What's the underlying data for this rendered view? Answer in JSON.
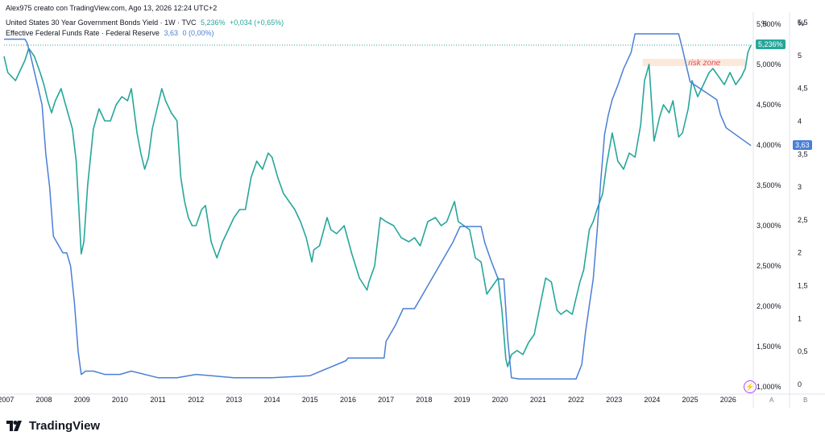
{
  "header": {
    "credit": "Alex975 creato con TradingView.com, Ago 13, 2026 12:24 UTC+2",
    "bond_title": "United States 30 Year Government Bonds Yield · 1W · TVC",
    "bond_value": "5,236%",
    "bond_change": "+0,034 (+0,65%)",
    "fed_title": "Effective Federal Funds Rate · Federal Reserve",
    "fed_value": "3,63",
    "fed_change": "0 (0,00%)"
  },
  "brand": {
    "name": "TradingView"
  },
  "colors": {
    "bond": "#26a69a",
    "fed": "#4a7fd6",
    "zone_fill": "#fbe3d0",
    "zone_text": "#e84a5f"
  },
  "chart_data": {
    "type": "line",
    "x_ticks": [
      "2007",
      "2008",
      "2009",
      "2010",
      "2011",
      "2012",
      "2013",
      "2014",
      "2015",
      "2016",
      "2017",
      "2018",
      "2019",
      "2020",
      "2021",
      "2022",
      "2023",
      "2024",
      "2025",
      "2026"
    ],
    "left_axis": {
      "title": "%",
      "ticks": [
        "5,500%",
        "5,000%",
        "4,500%",
        "4,000%",
        "3,500%",
        "3,000%",
        "2,500%",
        "2,000%",
        "1,500%",
        "1,000%"
      ],
      "range": [
        0.95,
        5.6
      ],
      "current_label": "5,236%",
      "pane_label": "A"
    },
    "right_axis": {
      "title": "%",
      "ticks": [
        "5,5",
        "5",
        "4,5",
        "4",
        "3,5",
        "3",
        "2,5",
        "2",
        "1,5",
        "1",
        "0,5",
        "0"
      ],
      "range": [
        -0.1,
        5.6
      ],
      "current_label": "3,63",
      "pane_label": "B"
    },
    "annotation": {
      "text": "risk zone",
      "x_range": [
        2023.75,
        2026.45
      ],
      "y_range": [
        4.98,
        5.07
      ]
    },
    "series": [
      {
        "name": "United States 30 Year Government Bonds Yield",
        "axis": "left",
        "x": [
          2006.95,
          2007.05,
          2007.15,
          2007.25,
          2007.35,
          2007.5,
          2007.6,
          2007.75,
          2007.9,
          2008.0,
          2008.1,
          2008.2,
          2008.3,
          2008.45,
          2008.6,
          2008.75,
          2008.85,
          2008.92,
          2008.98,
          2009.05,
          2009.15,
          2009.3,
          2009.45,
          2009.6,
          2009.75,
          2009.9,
          2010.05,
          2010.2,
          2010.3,
          2010.45,
          2010.55,
          2010.65,
          2010.75,
          2010.85,
          2011.0,
          2011.1,
          2011.2,
          2011.35,
          2011.5,
          2011.6,
          2011.7,
          2011.8,
          2011.9,
          2012.0,
          2012.15,
          2012.25,
          2012.4,
          2012.55,
          2012.7,
          2012.85,
          2013.0,
          2013.15,
          2013.3,
          2013.45,
          2013.6,
          2013.75,
          2013.9,
          2014.0,
          2014.15,
          2014.3,
          2014.45,
          2014.6,
          2014.75,
          2014.9,
          2015.05,
          2015.1,
          2015.25,
          2015.45,
          2015.55,
          2015.7,
          2015.9,
          2016.1,
          2016.3,
          2016.5,
          2016.55,
          2016.7,
          2016.85,
          2017.0,
          2017.2,
          2017.4,
          2017.6,
          2017.75,
          2017.9,
          2018.1,
          2018.3,
          2018.45,
          2018.6,
          2018.8,
          2018.9,
          2019.05,
          2019.2,
          2019.35,
          2019.5,
          2019.65,
          2019.8,
          2019.95,
          2020.05,
          2020.15,
          2020.2,
          2020.3,
          2020.45,
          2020.6,
          2020.75,
          2020.9,
          2021.05,
          2021.2,
          2021.35,
          2021.5,
          2021.6,
          2021.75,
          2021.9,
          2022.0,
          2022.1,
          2022.2,
          2022.35,
          2022.45,
          2022.55,
          2022.7,
          2022.8,
          2022.95,
          2023.1,
          2023.25,
          2023.4,
          2023.55,
          2023.7,
          2023.8,
          2023.92,
          2024.05,
          2024.2,
          2024.3,
          2024.45,
          2024.55,
          2024.7,
          2024.8,
          2024.95,
          2025.05,
          2025.2,
          2025.35,
          2025.5,
          2025.6,
          2025.75,
          2025.9,
          2026.05,
          2026.2,
          2026.35,
          2026.45,
          2026.52,
          2026.6
        ],
        "y": [
          5.1,
          4.9,
          4.85,
          4.8,
          4.9,
          5.05,
          5.2,
          5.1,
          4.9,
          4.75,
          4.55,
          4.4,
          4.55,
          4.7,
          4.45,
          4.2,
          3.8,
          3.2,
          2.65,
          2.8,
          3.5,
          4.2,
          4.45,
          4.3,
          4.3,
          4.5,
          4.6,
          4.55,
          4.7,
          4.15,
          3.9,
          3.7,
          3.85,
          4.2,
          4.5,
          4.7,
          4.55,
          4.4,
          4.3,
          3.6,
          3.3,
          3.1,
          3.0,
          3.0,
          3.2,
          3.25,
          2.8,
          2.6,
          2.8,
          2.95,
          3.1,
          3.2,
          3.2,
          3.6,
          3.8,
          3.7,
          3.9,
          3.85,
          3.6,
          3.4,
          3.3,
          3.2,
          3.05,
          2.85,
          2.55,
          2.7,
          2.75,
          3.1,
          2.95,
          2.9,
          3.0,
          2.65,
          2.35,
          2.2,
          2.3,
          2.5,
          3.1,
          3.05,
          3.0,
          2.85,
          2.8,
          2.85,
          2.75,
          3.05,
          3.1,
          3.0,
          3.05,
          3.3,
          3.05,
          3.0,
          2.95,
          2.6,
          2.55,
          2.15,
          2.25,
          2.35,
          1.95,
          1.35,
          1.25,
          1.4,
          1.45,
          1.4,
          1.55,
          1.65,
          2.0,
          2.35,
          2.3,
          1.95,
          1.9,
          1.95,
          1.9,
          2.1,
          2.3,
          2.45,
          2.95,
          3.05,
          3.2,
          3.4,
          3.75,
          4.15,
          3.8,
          3.7,
          3.9,
          3.85,
          4.25,
          4.8,
          5.0,
          4.05,
          4.35,
          4.5,
          4.4,
          4.55,
          4.1,
          4.15,
          4.45,
          4.8,
          4.6,
          4.75,
          4.9,
          4.95,
          4.85,
          4.75,
          4.9,
          4.75,
          4.85,
          4.95,
          5.15,
          5.24
        ]
      },
      {
        "name": "Effective Federal Funds Rate",
        "axis": "right",
        "x": [
          2006.95,
          2007.5,
          2007.55,
          2007.65,
          2007.75,
          2007.85,
          2007.95,
          2008.05,
          2008.15,
          2008.25,
          2008.5,
          2008.6,
          2008.7,
          2008.8,
          2008.9,
          2008.98,
          2009.1,
          2009.3,
          2009.6,
          2010.0,
          2010.3,
          2011.0,
          2011.5,
          2012.0,
          2013.0,
          2014.0,
          2015.0,
          2015.95,
          2016.0,
          2016.95,
          2017.0,
          2017.25,
          2017.45,
          2017.75,
          2018.0,
          2018.25,
          2018.5,
          2018.75,
          2018.95,
          2019.2,
          2019.5,
          2019.6,
          2019.75,
          2019.95,
          2020.1,
          2020.2,
          2020.3,
          2020.5,
          2021.0,
          2022.0,
          2022.15,
          2022.25,
          2022.35,
          2022.45,
          2022.55,
          2022.65,
          2022.75,
          2022.85,
          2022.95,
          2023.1,
          2023.25,
          2023.45,
          2023.55,
          2024.7,
          2024.8,
          2025.0,
          2025.7,
          2025.8,
          2025.95,
          2026.6
        ],
        "y": [
          5.25,
          5.25,
          5.2,
          5.0,
          4.75,
          4.5,
          4.25,
          3.5,
          3.0,
          2.25,
          2.0,
          2.0,
          1.8,
          1.25,
          0.5,
          0.15,
          0.2,
          0.2,
          0.15,
          0.15,
          0.2,
          0.1,
          0.1,
          0.15,
          0.1,
          0.1,
          0.13,
          0.36,
          0.4,
          0.4,
          0.65,
          0.9,
          1.15,
          1.15,
          1.4,
          1.65,
          1.9,
          2.15,
          2.4,
          2.4,
          2.4,
          2.15,
          1.9,
          1.6,
          1.6,
          0.7,
          0.1,
          0.08,
          0.08,
          0.08,
          0.3,
          0.8,
          1.2,
          1.6,
          2.3,
          3.1,
          3.8,
          4.1,
          4.33,
          4.55,
          4.8,
          5.05,
          5.33,
          5.33,
          5.1,
          4.6,
          4.33,
          4.1,
          3.9,
          3.63
        ]
      }
    ]
  }
}
